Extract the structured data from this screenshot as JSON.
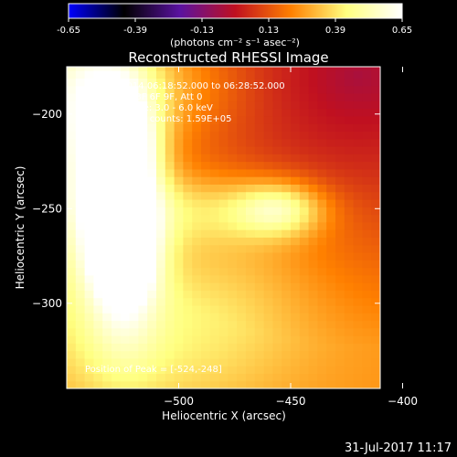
{
  "chart_data": {
    "type": "heatmap",
    "title": "Reconstructed RHESSI Image",
    "colorbar": {
      "ticks": [
        "-0.65",
        "-0.39",
        "-0.13",
        "0.13",
        "0.39",
        "0.65"
      ],
      "tick_values": [
        -0.65,
        -0.39,
        -0.13,
        0.13,
        0.39,
        0.65
      ],
      "label": "(photons cm⁻² s⁻¹ asec⁻²)",
      "range": [
        -0.65,
        0.65
      ],
      "colors": [
        "#0000ff",
        "#000000",
        "#5a12a0",
        "#c01020",
        "#ff8000",
        "#ffff80",
        "#ffffff"
      ]
    },
    "xlabel": "Heliocentric X (arcsec)",
    "ylabel": "Heliocentric Y (arcsec)",
    "xlim": [
      -550,
      -410
    ],
    "ylim": [
      -345,
      -175
    ],
    "xticks": [
      -500,
      -450,
      -400
    ],
    "xtick_labels": [
      "−500",
      "−450",
      "−400"
    ],
    "yticks": [
      -200,
      -250,
      -300
    ],
    "ytick_labels": [
      "−200",
      "−250",
      "−300"
    ],
    "annotations": [
      "13-Nov-2014 06:18:52.000 to 06:28:52.000",
      "Detectors: 3F 6F 9F, Att 0",
      "Energy Range: 3.0 - 6.0 keV",
      "Clean     Total counts: 1.59E+05"
    ],
    "peak_label": "Position of Peak = [-524,-248]",
    "peak": [
      -524,
      -248
    ],
    "sources": [
      {
        "x": -524,
        "y": -248,
        "sx": 12,
        "sy": 45,
        "amp": 0.5
      },
      {
        "x": -524,
        "y": -215,
        "sx": 9,
        "sy": 15,
        "amp": 0.22
      },
      {
        "x": -525,
        "y": -275,
        "sx": 10,
        "sy": 14,
        "amp": 0.2
      },
      {
        "x": -545,
        "y": -210,
        "sx": 18,
        "sy": 60,
        "amp": 0.3
      },
      {
        "x": -455,
        "y": -250,
        "sx": 14,
        "sy": 10,
        "amp": 0.3
      },
      {
        "x": -490,
        "y": -250,
        "sx": 30,
        "sy": 14,
        "amp": 0.18
      },
      {
        "x": -515,
        "y": -185,
        "sx": 30,
        "sy": 22,
        "amp": 0.18
      },
      {
        "x": -505,
        "y": -320,
        "sx": 40,
        "sy": 30,
        "amp": 0.15
      },
      {
        "x": -470,
        "y": -280,
        "sx": 30,
        "sy": 25,
        "amp": 0.08
      }
    ],
    "background": 0.25,
    "background_falloff": {
      "x0": -420,
      "y0": -180,
      "scale": 65,
      "min": -0.05
    }
  },
  "footer": {
    "timestamp": "31-Jul-2017 11:17"
  }
}
